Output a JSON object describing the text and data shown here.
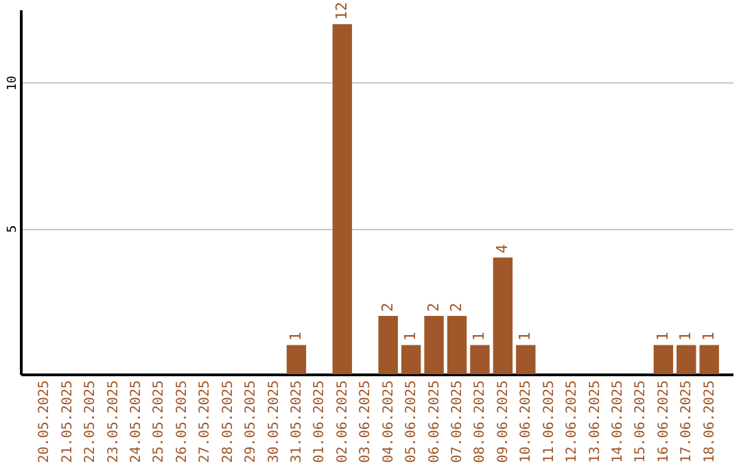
{
  "chart_data": {
    "type": "bar",
    "categories": [
      "20.05.2025",
      "21.05.2025",
      "22.05.2025",
      "23.05.2025",
      "24.05.2025",
      "25.05.2025",
      "26.05.2025",
      "27.05.2025",
      "28.05.2025",
      "29.05.2025",
      "30.05.2025",
      "31.05.2025",
      "01.06.2025",
      "02.06.2025",
      "03.06.2025",
      "04.06.2025",
      "05.06.2025",
      "06.06.2025",
      "07.06.2025",
      "08.06.2025",
      "09.06.2025",
      "10.06.2025",
      "11.06.2025",
      "12.06.2025",
      "13.06.2025",
      "14.06.2025",
      "15.06.2025",
      "16.06.2025",
      "17.06.2025",
      "18.06.2025"
    ],
    "values": [
      0,
      0,
      0,
      0,
      0,
      0,
      0,
      0,
      0,
      0,
      0,
      1,
      0,
      12,
      0,
      2,
      1,
      2,
      2,
      1,
      4,
      1,
      0,
      0,
      0,
      0,
      0,
      1,
      1,
      1
    ],
    "value_labels": [
      null,
      null,
      null,
      null,
      null,
      null,
      null,
      null,
      null,
      null,
      null,
      "1",
      null,
      "12",
      null,
      "2",
      "1",
      "2",
      "2",
      "1",
      "4",
      "1",
      null,
      null,
      null,
      null,
      null,
      "1",
      "1",
      "1"
    ],
    "color": "#a0582a",
    "ylim": [
      0,
      12.5
    ],
    "yticks": [
      5,
      10
    ],
    "grid": "y"
  }
}
